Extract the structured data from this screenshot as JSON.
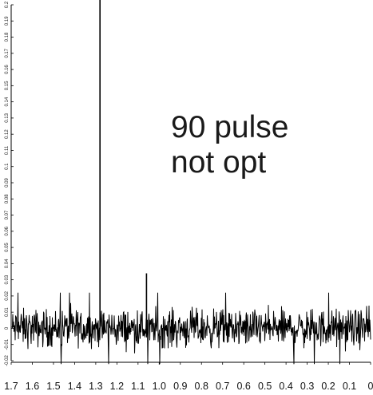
{
  "chart_data": {
    "type": "line",
    "title": "",
    "xlabel": "",
    "ylabel": "",
    "xlim": [
      1.7,
      0
    ],
    "ylim": [
      -0.02,
      0.2
    ],
    "x_reversed": true,
    "x_ticks": [
      "1.7",
      "1.6",
      "1.5",
      "1.4",
      "1.3",
      "1.2",
      "1.1",
      "1.0",
      "0.9",
      "0.8",
      "0.7",
      "0.6",
      "0.5",
      "0.4",
      "0.3",
      "0.2",
      "0.1",
      "0"
    ],
    "y_ticks": [
      "-0.02",
      "-0.01",
      "0",
      "0.01",
      "0.02",
      "0.03",
      "0.04",
      "0.05",
      "0.06",
      "0.07",
      "0.08",
      "0.09",
      "0.1",
      "0.11",
      "0.12",
      "0.13",
      "0.14",
      "0.15",
      "0.16",
      "0.17",
      "0.18",
      "0.19",
      "0.2"
    ],
    "noise_amplitude": 0.017,
    "peaks": [
      {
        "x": 1.28,
        "y": 0.203
      },
      {
        "x": 1.06,
        "y": 0.034
      }
    ],
    "annotation": [
      "90 pulse",
      "not opt"
    ],
    "line_color": "#000000",
    "grid": false
  }
}
